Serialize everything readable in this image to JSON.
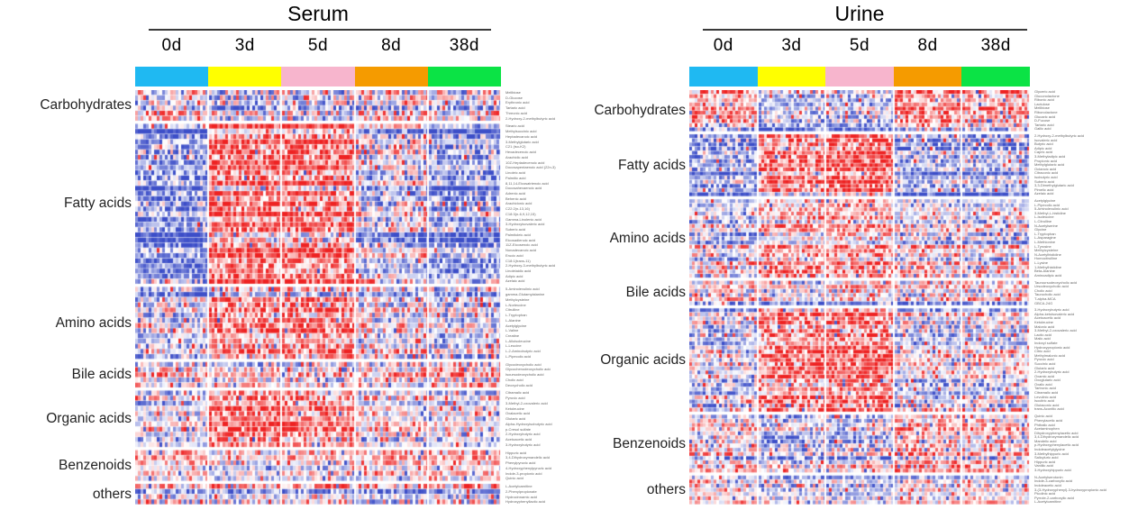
{
  "panels": [
    {
      "id": "serum",
      "title": "Serum",
      "timepoints": [
        "0d",
        "3d",
        "5d",
        "8d",
        "38d"
      ],
      "group_colors": [
        "#1fb9f2",
        "#ffff00",
        "#f7b5cd",
        "#f59b00",
        "#0be345"
      ],
      "categories": [
        {
          "label": "Carbohydrates",
          "row_labels": [
            "Melibiose",
            "D-Glucose",
            "Erythronic acid",
            "Tartaric acid",
            "Threonic acid",
            "2-Hydroxy-2-methylbutyric acid"
          ]
        },
        {
          "label": "Fatty acids",
          "row_labels": [
            "Stearic acid",
            "Methylsuccinic acid",
            "Heptadecanoic acid",
            "3-Methylglutaric acid",
            "C21 (iso-K2)",
            "Hexadecenoic acid",
            "Arachidic acid",
            "10Z-Heptadecenoic acid",
            "Docosapentaenoic acid (22n-3)",
            "Linoleic acid",
            "Palmitic acid",
            "8,11,14-Eicosatrienoic acid",
            "Docosahexaenoic acid",
            "Adrenic acid",
            "Behenic acid",
            "Arachidonic acid",
            "C22:2(n-13,16)",
            "C18:3(n-6,9,12,15)",
            "Gamma-Linolenic acid",
            "3-Hydroxyisovaleric acid",
            "Suberic acid",
            "Palmitoleic acid",
            "Eicosadienoic acid",
            "11Z-Eicosenoic acid",
            "Nonadecanoic acid",
            "Erucic acid",
            "C18:1(trans-11)",
            "2-Hydroxy-3-methylbutyric acid",
            "Linolelaidic acid",
            "Adipic acid",
            "Azelaic acid"
          ]
        },
        {
          "label": "Amino acids",
          "row_labels": [
            "5-Aminolevulinic acid",
            "gamma-Glutamylalanine",
            "Methylcysteine",
            "L-Norleucine",
            "Citrulline",
            "L-Tryptophan",
            "L-Alanine",
            "Acetylglycine",
            "L-Valine",
            "Creatine",
            "L-Alloisoleucine",
            "L-Leucine",
            "L-2-Aminobutyric acid",
            "L-Pipecolic acid"
          ]
        },
        {
          "label": "Bile acids",
          "row_labels": [
            "Glycodeoxycholic acid",
            "Glycochenodeoxycholic acid",
            "Isoursodeoxycholic acid",
            "Cholic acid",
            "Deoxycholic acid"
          ]
        },
        {
          "label": "Organic acids",
          "row_labels": [
            "Citramalic acid",
            "Pyruvic acid",
            "3-Methyl-2-oxovaleric acid",
            "Ketoleucine",
            "Oxalacetic acid",
            "Glutaric acid",
            "Alpha-Hydroxyisobutyric acid",
            "p-Cresol sulfate",
            "2-Hydroxybutyric acid",
            "Acetoacetic acid",
            "3-Hydroxybutyric acid"
          ]
        },
        {
          "label": "Benzenoids",
          "row_labels": [
            "Hippuric acid",
            "3,4-Dihydroxymandelic acid",
            "Phenylpyruvic acid",
            "4-Hydroxyphenylpyruvic acid",
            "Indole-3-propionic acid",
            "Quinic acid"
          ]
        },
        {
          "label": "others",
          "row_labels": [
            "L-Acetylcarnitine",
            "2-Phenylpropionate",
            "Hydrocinnamic acid",
            "Hydroxyphenyllactic acid"
          ]
        }
      ]
    },
    {
      "id": "urine",
      "title": "Urine",
      "timepoints": [
        "0d",
        "3d",
        "5d",
        "8d",
        "38d"
      ],
      "group_colors": [
        "#1fb9f2",
        "#ffff00",
        "#f7b5cd",
        "#f59b00",
        "#0be345"
      ],
      "categories": [
        {
          "label": "Carbohydrates",
          "row_labels": [
            "Glyceric acid",
            "Gluconolactone",
            "Ribonic acid",
            "Lactulose",
            "Melibiose",
            "Ribonolactone",
            "Glucaric acid",
            "D-Fucose",
            "Tartaric acid",
            "Gallic acid"
          ]
        },
        {
          "label": "Fatty acids",
          "row_labels": [
            "2-Hydroxy-2-methylbutyric acid",
            "Isovaleric acid",
            "Butyric acid",
            "Adipic acid",
            "Capric acid",
            "3-Methyladipic acid",
            "Propionic acid",
            "Methylglutaric acid",
            "Octanoic acid",
            "Citraconic acid",
            "Isobutyric acid",
            "Suberic acid",
            "3,3-Dimethylglutaric acid",
            "Pimelic acid",
            "Azelaic acid"
          ]
        },
        {
          "label": "Amino acids",
          "row_labels": [
            "Acetylglycine",
            "L-Pipecolic acid",
            "5-Aminolevulinic acid",
            "3-Methyl-L-histidine",
            "L-Isoleucine",
            "L-Citrulline",
            "N-Acetylserine",
            "Glycine",
            "L-Tryptophan",
            "L-Asparagine",
            "L-Methionine",
            "L-Tyrosine",
            "Methylcysteine",
            "N-Acetylhistidine",
            "Homocitrulline",
            "L-Lysine",
            "1-Methylhistidine",
            "Beta-Alanine",
            "Aminoadipic acid"
          ]
        },
        {
          "label": "Bile acids",
          "row_labels": [
            "Tauroursodeoxycholic acid",
            "Ursodeoxycholic acid",
            "Cholic acid",
            "Taurocholic acid",
            "T-alpha-MCA",
            "GBCA-24G"
          ]
        },
        {
          "label": "Organic acids",
          "row_labels": [
            "3-Hydroxybutyric acid",
            "Alpha-ketoisovaleric acid",
            "Acetoacetic acid",
            "Ketoleucine",
            "Malonic acid",
            "3-Methyl-2-oxovaleric acid",
            "Lactic acid",
            "Malic acid",
            "Indoxyl sulfate",
            "Hydroxypropionic acid",
            "Citric acid",
            "Methylmalonic acid",
            "Pyruvic acid",
            "Succinic acid",
            "Glutaric acid",
            "2-Hydroxybutyric acid",
            "Oxamic acid",
            "Oxoglutaric acid",
            "Oxalic acid",
            "Tartronic acid",
            "Citramalic acid",
            "Levulinic acid",
            "Isocitric acid",
            "Glutaconic acid",
            "trans-Aconitic acid"
          ]
        },
        {
          "label": "Benzenoids",
          "row_labels": [
            "Quinic acid",
            "Phenylacetic acid",
            "Phthalic acid",
            "Acetaminophen",
            "Dihydroxyphenylacetic acid",
            "3,4-Dihydroxymandelic acid",
            "Mandelic acid",
            "p-Hydroxyphenylacetic acid",
            "Indoleacetylglycine",
            "3-Methylhippuric acid",
            "Salicyluric acid",
            "Hippuric acid",
            "Vanillic acid",
            "3-Hydroxyhippuric acid"
          ]
        },
        {
          "label": "others",
          "row_labels": [
            "N-Acetylserotonin",
            "Indole-3-carboxylic acid",
            "Indoleacetic acid",
            "3-(3-Hydroxyphenyl)-3-hydroxypropionic acid",
            "Picolinic acid",
            "Pyrrole-2-carboxylic acid",
            "L-Acetylcarnitine"
          ]
        }
      ]
    }
  ],
  "chart_data": {
    "type": "heatmap",
    "description": "Two clustered metabolite heatmaps (Serum, Urine); columns are individual samples grouped by timepoint, rows are metabolites grouped by chemical class; blue=low, white=mid, red=high relative abundance",
    "colormap": {
      "low": "#3c4ec8",
      "mid": "#ffffff",
      "high": "#ee2222"
    },
    "timepoints": [
      "0d",
      "3d",
      "5d",
      "8d",
      "38d"
    ],
    "timepoint_band_colors": [
      "#1fb9f2",
      "#ffff00",
      "#f7b5cd",
      "#f59b00",
      "#0be345"
    ],
    "panels": [
      {
        "name": "Serum",
        "approx_sample_columns": 135,
        "categories": [
          "Carbohydrates",
          "Fatty acids",
          "Amino acids",
          "Bile acids",
          "Organic acids",
          "Benzenoids",
          "others"
        ],
        "rows_per_category": [
          6,
          31,
          14,
          5,
          11,
          6,
          4
        ],
        "pattern_mean_z": [
          [
            0.25,
            0.0,
            0.1,
            0.2,
            0.15
          ],
          [
            -0.45,
            0.65,
            0.6,
            -0.05,
            -0.35
          ],
          [
            -0.1,
            0.45,
            0.45,
            0.05,
            -0.1
          ],
          [
            0.15,
            0.05,
            0.1,
            0.1,
            0.2
          ],
          [
            -0.15,
            0.5,
            0.4,
            -0.05,
            -0.15
          ],
          [
            0.2,
            -0.05,
            0.05,
            0.1,
            0.15
          ],
          [
            0.1,
            0.15,
            0.2,
            0.0,
            0.1
          ]
        ]
      },
      {
        "name": "Urine",
        "approx_sample_columns": 126,
        "categories": [
          "Carbohydrates",
          "Fatty acids",
          "Amino acids",
          "Bile acids",
          "Organic acids",
          "Benzenoids",
          "others"
        ],
        "rows_per_category": [
          10,
          15,
          19,
          6,
          25,
          14,
          7
        ],
        "pattern_mean_z": [
          [
            0.3,
            -0.25,
            -0.25,
            0.45,
            0.3
          ],
          [
            -0.35,
            0.55,
            0.75,
            -0.3,
            -0.25
          ],
          [
            -0.05,
            0.35,
            0.4,
            0.1,
            0.0
          ],
          [
            0.2,
            0.0,
            0.2,
            0.15,
            0.2
          ],
          [
            -0.15,
            0.45,
            0.55,
            -0.1,
            -0.05
          ],
          [
            0.1,
            -0.2,
            -0.15,
            0.3,
            0.2
          ],
          [
            0.2,
            0.0,
            -0.05,
            0.1,
            0.2
          ]
        ]
      }
    ]
  }
}
